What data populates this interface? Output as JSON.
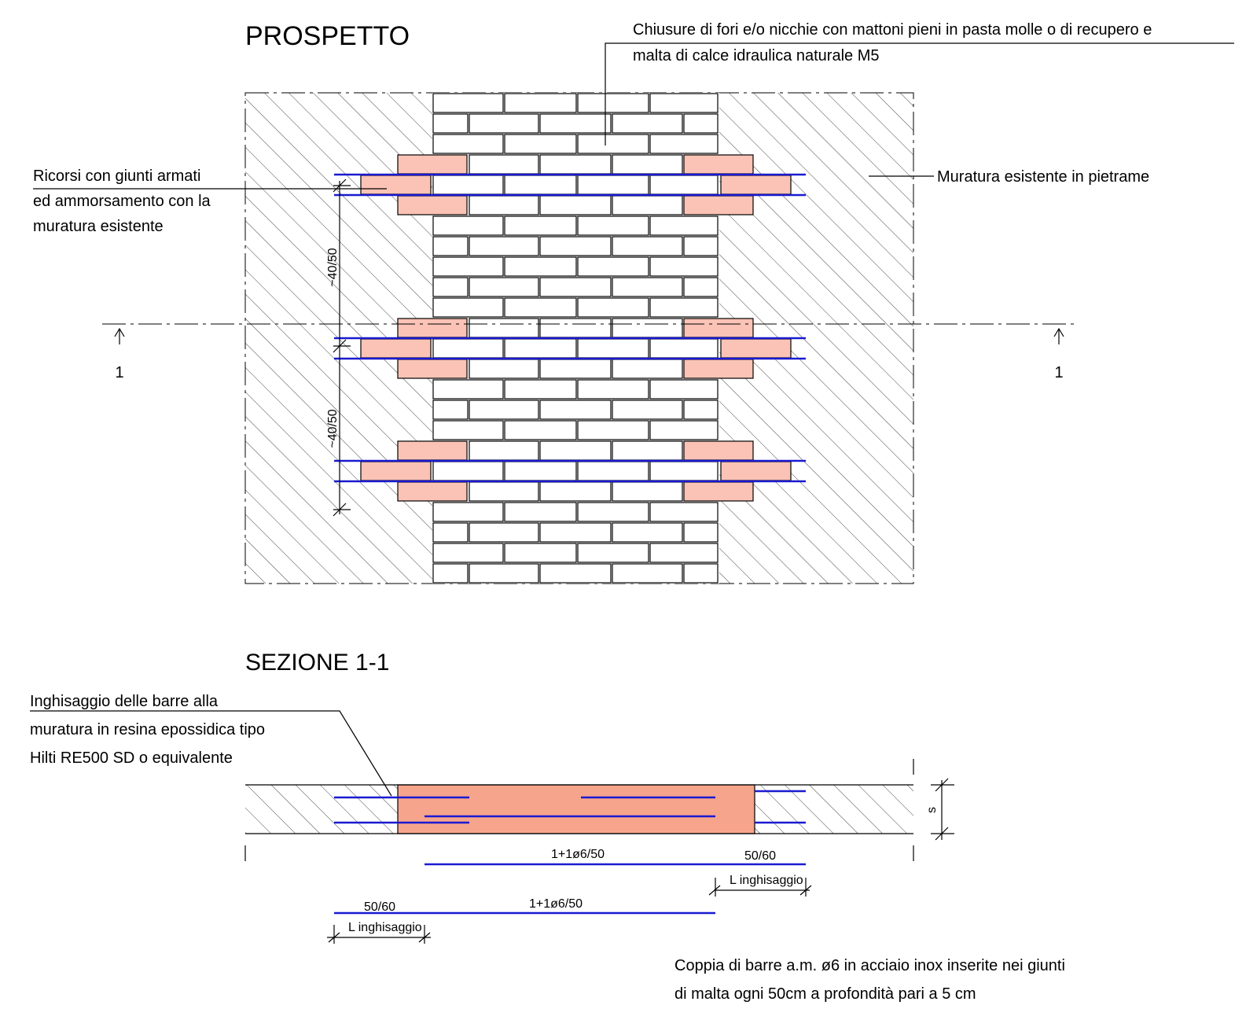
{
  "prospetto": {
    "title": "PROSPETTO",
    "note_top": [
      "Chiusure di fori e/o nicchie con mattoni pieni in pasta molle o di recupero e",
      "malta di calce idraulica naturale M5"
    ],
    "note_left": [
      "Ricorsi con giunti armati",
      "ed ammorsamento con la",
      "muratura esistente"
    ],
    "note_right": "Muratura esistente in pietrame",
    "dimensions": [
      "~40/50",
      "~40/50"
    ],
    "section_marks": [
      "1",
      "1"
    ]
  },
  "sezione": {
    "title": "SEZIONE 1-1",
    "note_resin": [
      "Inghisaggio delle barre alla",
      "muratura in resina epossidica tipo",
      "Hilti RE500 SD o equivalente"
    ],
    "thickness": "s",
    "bar_upper": {
      "label": "1+1ø6/50",
      "anchor": "50/60",
      "anchor_label": "L inghisaggio"
    },
    "bar_lower": {
      "label": "1+1ø6/50",
      "anchor": "50/60",
      "anchor_label": "L inghisaggio"
    },
    "note_bars": [
      "Coppia di barre a.m. ø6 in acciaio inox inserite nei giunti",
      "di malta ogni 50cm a profondità pari a 5 cm"
    ]
  }
}
